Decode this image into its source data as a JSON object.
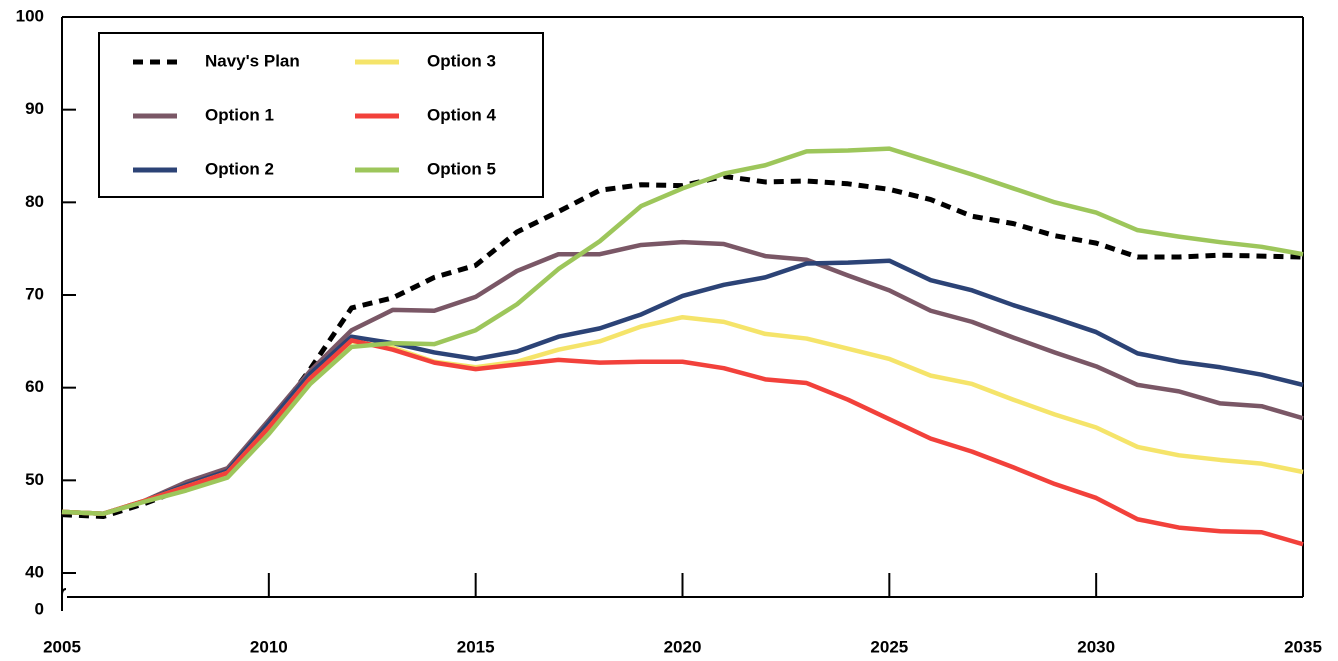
{
  "chart_data": {
    "type": "line",
    "x": [
      2005,
      2006,
      2007,
      2008,
      2009,
      2010,
      2011,
      2012,
      2013,
      2014,
      2015,
      2016,
      2017,
      2018,
      2019,
      2020,
      2021,
      2022,
      2023,
      2024,
      2025,
      2026,
      2027,
      2028,
      2029,
      2030,
      2031,
      2032,
      2033,
      2034,
      2035
    ],
    "xlim": [
      2005,
      2035
    ],
    "xticks": [
      2005,
      2010,
      2015,
      2020,
      2025,
      2030,
      2035
    ],
    "ylim": [
      40,
      100
    ],
    "yticks": [
      0,
      40,
      50,
      60,
      70,
      80,
      90,
      100
    ],
    "axis_break": true,
    "legend": "upper left",
    "series": [
      {
        "name": "Navy's Plan",
        "color": "#000000",
        "dash": true,
        "values": [
          46.3,
          46.1,
          47.5,
          49.2,
          50.8,
          56,
          62,
          68.6,
          69.7,
          71.9,
          73.2,
          76.8,
          79,
          81.3,
          81.9,
          81.8,
          82.8,
          82.2,
          82.3,
          82,
          81.4,
          80.3,
          78.5,
          77.7,
          76.4,
          75.6,
          74.1,
          74.1,
          74.3,
          74.2,
          74.1
        ]
      },
      {
        "name": "Option 1",
        "color": "#7a5766",
        "values": [
          46.6,
          46.4,
          47.8,
          49.8,
          51.3,
          56.5,
          61.8,
          66.2,
          68.4,
          68.3,
          69.8,
          72.6,
          74.4,
          74.4,
          75.4,
          75.7,
          75.5,
          74.2,
          73.8,
          72.1,
          70.5,
          68.3,
          67.1,
          65.4,
          63.8,
          62.3,
          60.3,
          59.6,
          58.3,
          58,
          56.7
        ]
      },
      {
        "name": "Option 2",
        "color": "#2c4376",
        "values": [
          46.6,
          46.4,
          47.8,
          49.5,
          51,
          56.2,
          61.5,
          65.5,
          64.8,
          63.8,
          63.1,
          63.9,
          65.5,
          66.4,
          67.9,
          69.9,
          71.1,
          71.9,
          73.4,
          73.5,
          73.7,
          71.6,
          70.5,
          68.9,
          67.5,
          66,
          63.7,
          62.8,
          62.2,
          61.4,
          60.3
        ]
      },
      {
        "name": "Option 3",
        "color": "#f5e46a",
        "values": [
          46.6,
          46.4,
          47.8,
          49.3,
          50.8,
          55.7,
          61,
          65,
          64.3,
          62.8,
          62.2,
          62.8,
          64.1,
          65,
          66.6,
          67.6,
          67.1,
          65.8,
          65.3,
          64.2,
          63.1,
          61.3,
          60.4,
          58.7,
          57.1,
          55.7,
          53.6,
          52.7,
          52.2,
          51.8,
          50.9
        ]
      },
      {
        "name": "Option 4",
        "color": "#f2413b",
        "values": [
          46.6,
          46.4,
          47.8,
          49.3,
          50.8,
          55.7,
          61,
          65.1,
          64.1,
          62.7,
          62,
          62.5,
          63,
          62.7,
          62.8,
          62.8,
          62.1,
          60.9,
          60.5,
          58.7,
          56.6,
          54.5,
          53.1,
          51.4,
          49.6,
          48.1,
          45.8,
          44.9,
          44.5,
          44.4,
          43.1
        ]
      },
      {
        "name": "Option 5",
        "color": "#9dc65b",
        "values": [
          46.6,
          46.4,
          47.7,
          48.9,
          50.3,
          55,
          60.4,
          64.4,
          64.8,
          64.7,
          66.2,
          69,
          72.8,
          75.8,
          79.6,
          81.5,
          83.1,
          84,
          85.5,
          85.6,
          85.8,
          84.4,
          83,
          81.5,
          80,
          78.9,
          77,
          76.3,
          75.7,
          75.2,
          74.4
        ]
      }
    ]
  }
}
